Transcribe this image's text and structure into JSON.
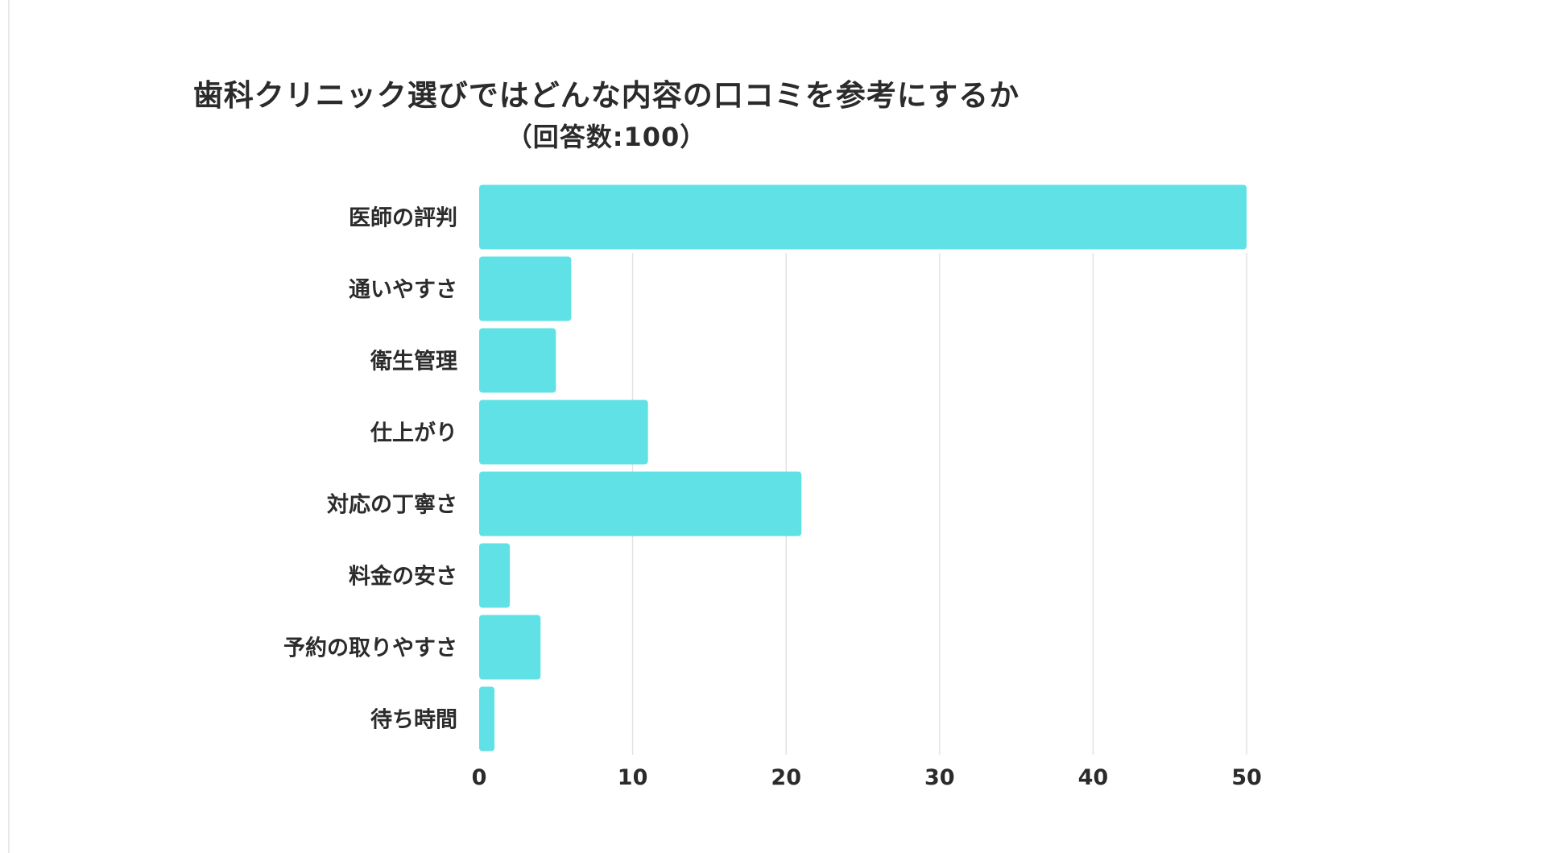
{
  "chart_data": {
    "type": "bar",
    "orientation": "horizontal",
    "title": "歯科クリニック選びではどんな内容の口コミを参考にするか",
    "subtitle": "（回答数:100）",
    "categories": [
      "医師の評判",
      "通いやすさ",
      "衛生管理",
      "仕上がり",
      "対応の丁寧さ",
      "料金の安さ",
      "予約の取りやすさ",
      "待ち時間"
    ],
    "values": [
      50,
      6,
      5,
      11,
      21,
      2,
      4,
      1
    ],
    "xlim": [
      0,
      50
    ],
    "xticks": [
      "0",
      "10",
      "20",
      "30",
      "40",
      "50"
    ],
    "xlabel": "",
    "ylabel": "",
    "grid": true,
    "bar_color": "#5fe1e6",
    "grid_color": "#e3e3e3",
    "text_color": "#2b2b2b"
  }
}
